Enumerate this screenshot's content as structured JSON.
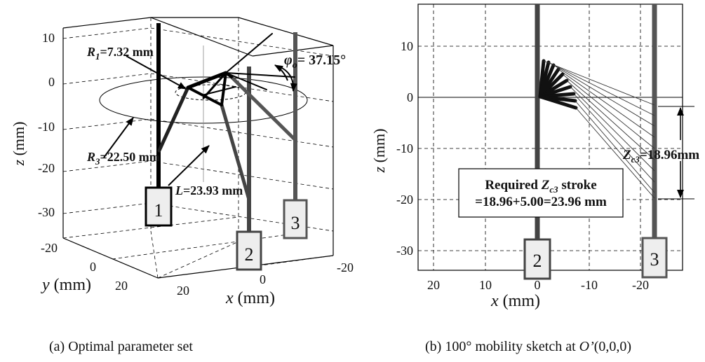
{
  "panel_a": {
    "caption": "(a) Optimal parameter set",
    "z_ticks": [
      "10",
      "0",
      "-10",
      "-20",
      "-30"
    ],
    "y_ticks": [
      "-20",
      "0",
      "20"
    ],
    "x_ticks": [
      "20",
      "0",
      "-20"
    ],
    "z_label": "z",
    "z_unit": " (mm)",
    "y_label": "y",
    "y_unit": " (mm)",
    "x_label": "x",
    "x_unit": " (mm)",
    "annotations": {
      "r1_sym": "R",
      "r1_sub": "1",
      "r1_val": "=7.32 mm",
      "r3_sym": "R",
      "r3_sub": "3",
      "r3_val": "=22.50 mm",
      "l_sym": "L",
      "l_val": "=23.93 mm",
      "phi_sym": "φ",
      "phi_sub": "o",
      "phi_val": "= 37.15°"
    },
    "actuator_labels": [
      "1",
      "2",
      "3"
    ]
  },
  "panel_b": {
    "caption_pre": "(b) 100° mobility sketch at ",
    "caption_italic": "O’",
    "caption_post": "(0,0,0)",
    "z_ticks": [
      "10",
      "0",
      "-10",
      "-20",
      "-30"
    ],
    "x_ticks": [
      "20",
      "10",
      "0",
      "-10",
      "-20"
    ],
    "z_label": "z",
    "z_unit": " (mm)",
    "x_label": "x",
    "x_unit": " (mm)",
    "zc3_sym": "Z",
    "zc3_sub": "c3",
    "zc3_val": "=18.96mm",
    "box_line1_pre": "Required ",
    "box_sym": "Z",
    "box_sub": "c3",
    "box_line1_post": " stroke",
    "box_line2": "=18.96+5.00=23.96 mm",
    "actuator_labels": [
      "2",
      "3"
    ]
  }
}
